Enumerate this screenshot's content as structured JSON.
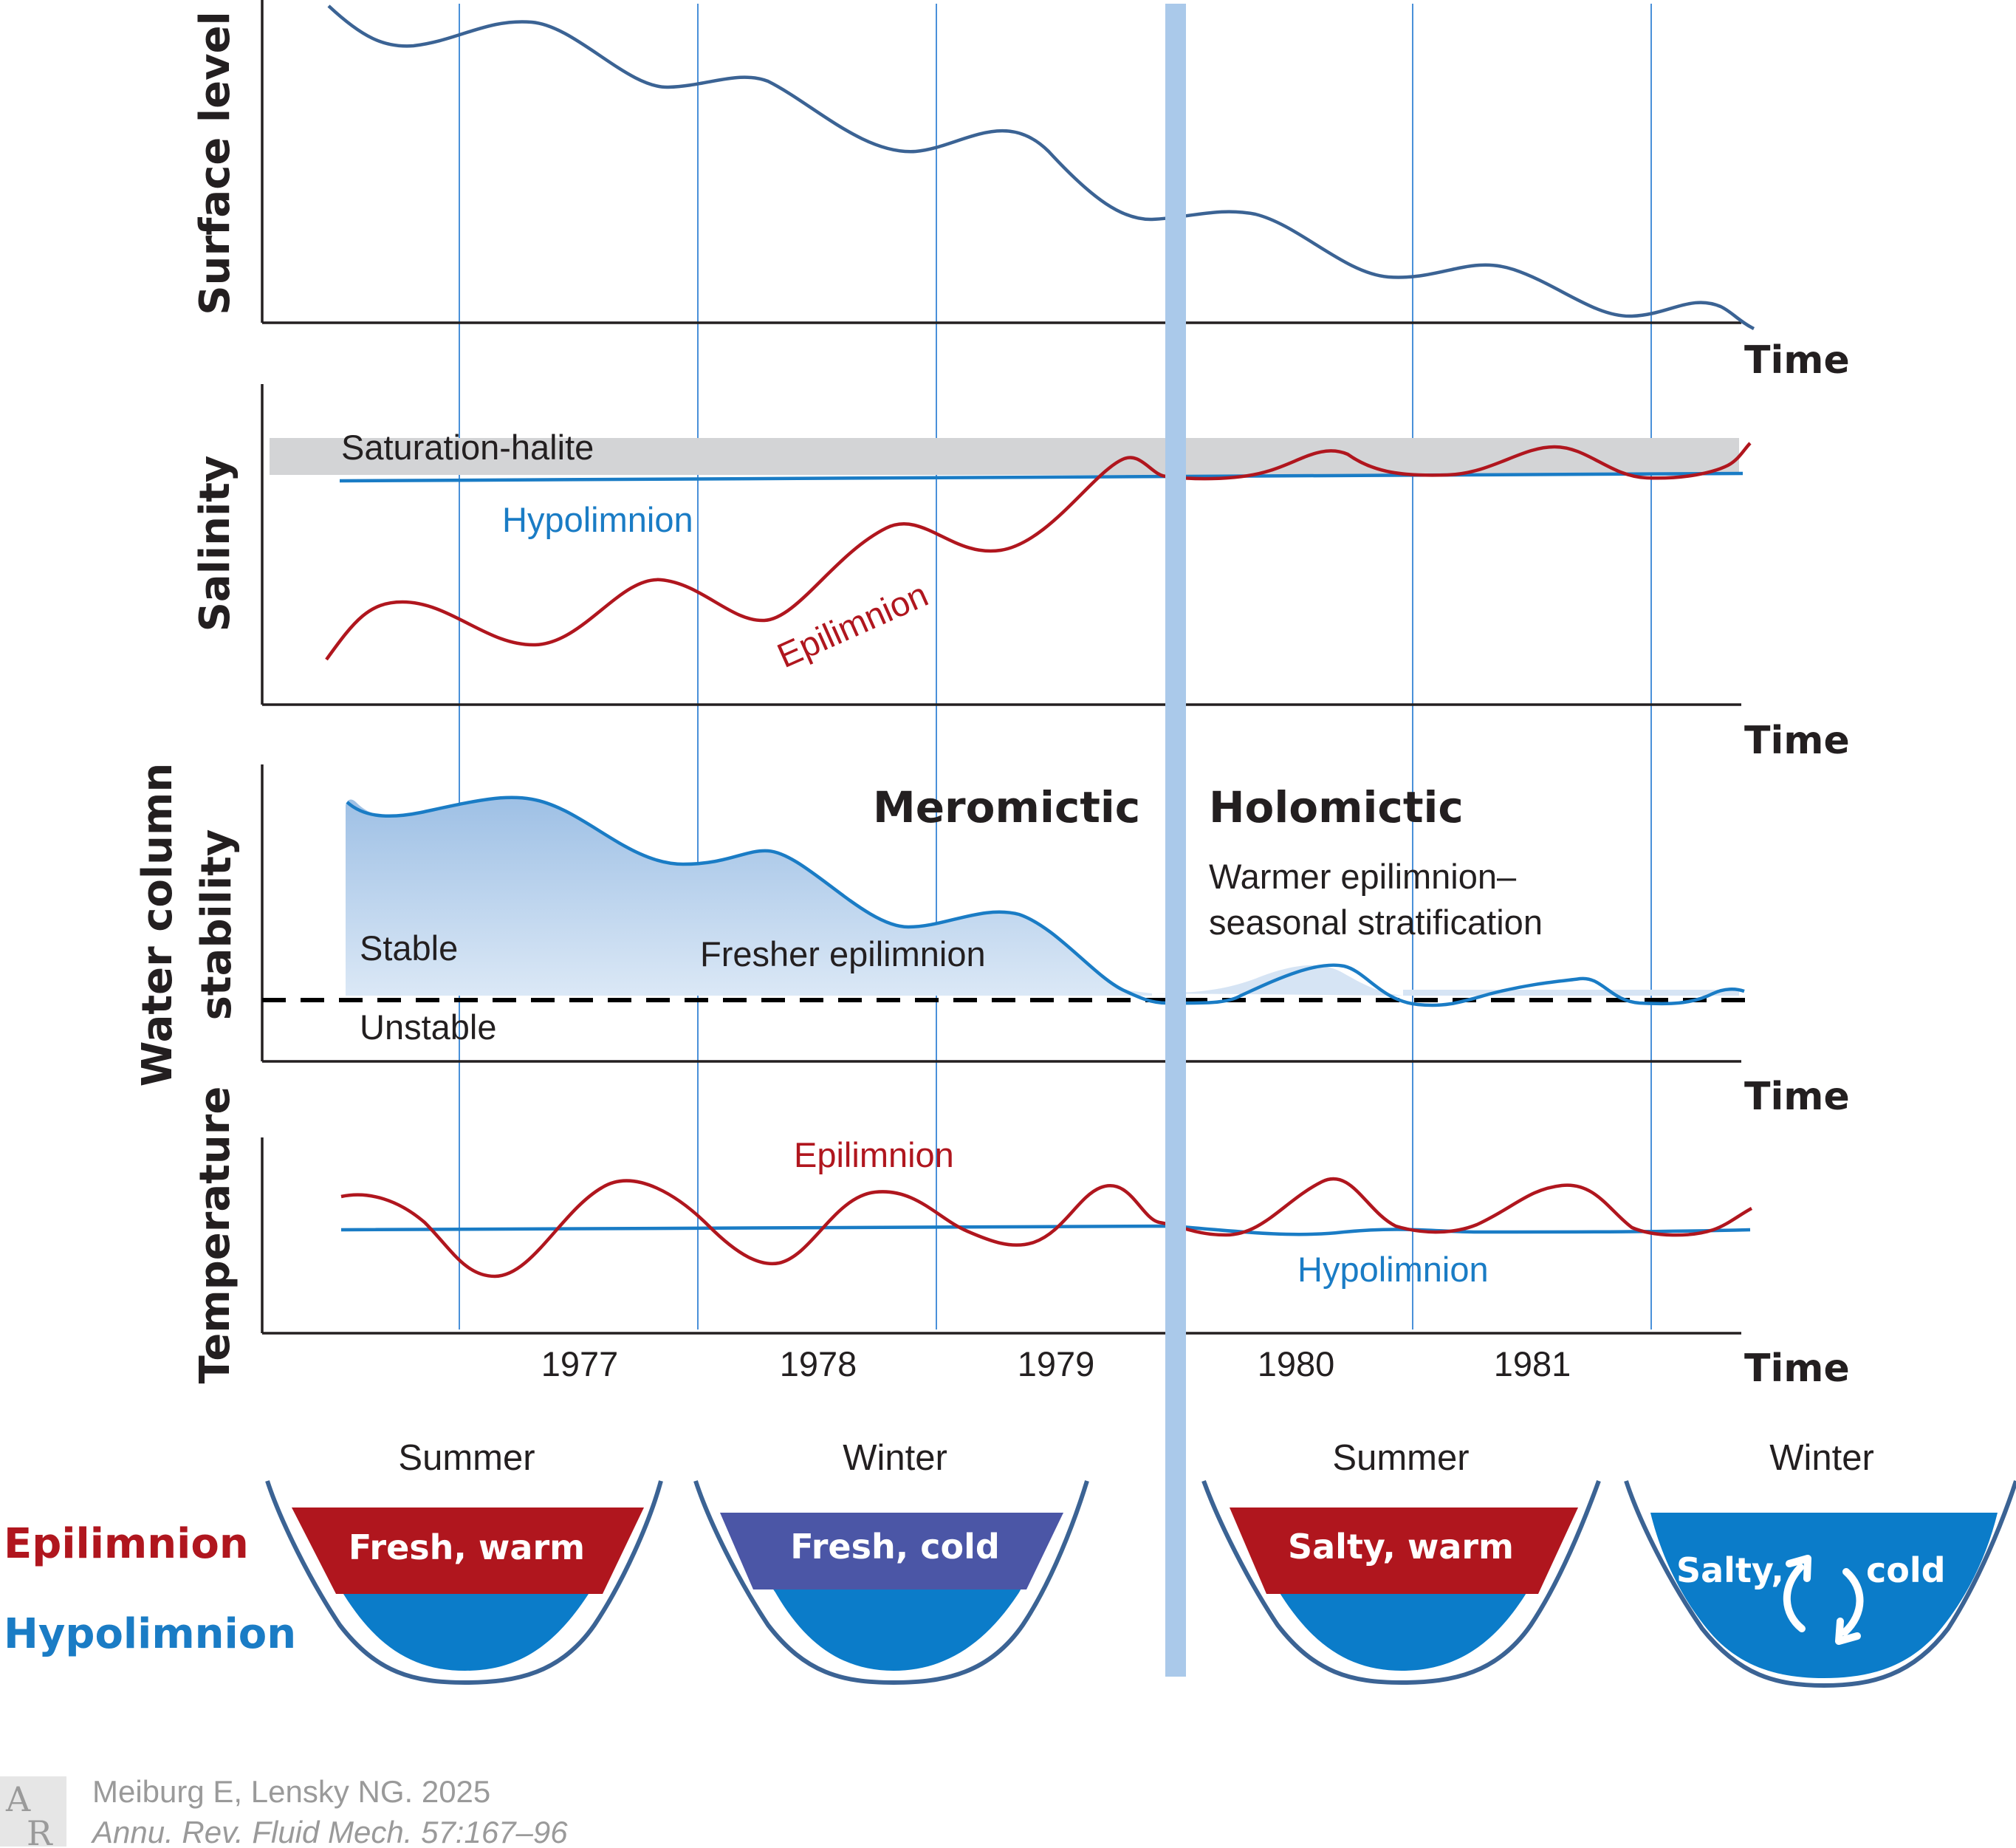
{
  "panels": {
    "surface": {
      "ylabel": "Surface level",
      "xlabel": "Time"
    },
    "salinity": {
      "ylabel": "Salinity",
      "xlabel": "Time",
      "band": "Saturation-halite",
      "hypo": "Hypolimnion",
      "epi": "Epilimnion"
    },
    "stability": {
      "ylabel1": "Water column",
      "ylabel2": "stability",
      "xlabel": "Time",
      "meromictic": "Meromictic",
      "holomictic": "Holomictic",
      "note1": "Warmer epilimnion–",
      "note2": "seasonal stratification",
      "stable": "Stable",
      "fresher": "Fresher epilimnion",
      "unstable": "Unstable"
    },
    "temperature": {
      "ylabel": "Temperature",
      "xlabel": "Time",
      "epi": "Epilimnion",
      "hypo": "Hypolimnion",
      "years": [
        "1977",
        "1978",
        "1979",
        "1980",
        "1981"
      ]
    }
  },
  "lakes": {
    "legend_epi": "Epilimnion",
    "legend_hypo": "Hypolimnion",
    "items": [
      {
        "season": "Summer",
        "label": "Fresh, warm",
        "top_color": "#b0161e"
      },
      {
        "season": "Winter",
        "label": "Fresh, cold",
        "top_color": "#4b56a6"
      },
      {
        "season": "Summer",
        "label": "Salty, warm",
        "top_color": "#b0161e"
      },
      {
        "season": "Winter",
        "label_a": "Salty,",
        "label_b": "cold",
        "top_color": "#0b7cc9"
      }
    ]
  },
  "colors": {
    "surface_line": "#3b6394",
    "epilimnion": "#b0161e",
    "hypolimnion": "#1a7cc5",
    "stability_fill": "#bcd4ee",
    "transition_bar": "#aac9ea",
    "saturation_band": "#d3d4d6"
  },
  "citation": {
    "line1": "Meiburg E, Lensky NG. 2025",
    "line2": "Annu. Rev. Fluid Mech. 57:167–96"
  }
}
